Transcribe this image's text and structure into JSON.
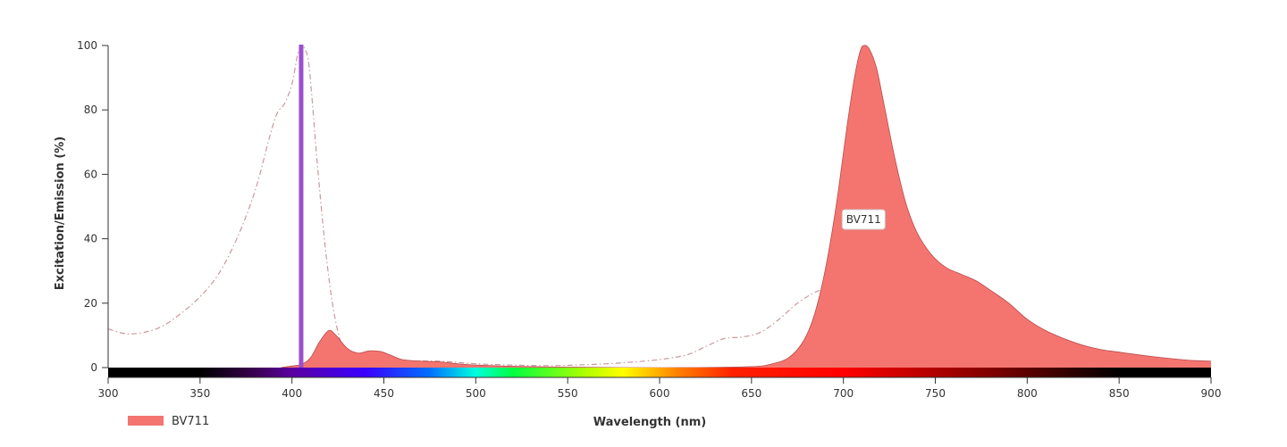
{
  "chart_data": {
    "type": "area",
    "xlabel": "Wavelength (nm)",
    "ylabel": "Excitation/Emission (%)",
    "xlim": [
      300,
      900
    ],
    "ylim": [
      0,
      100
    ],
    "x_ticks": [
      300,
      350,
      400,
      450,
      500,
      550,
      600,
      650,
      700,
      750,
      800,
      850,
      900
    ],
    "y_ticks": [
      0,
      20,
      40,
      60,
      80,
      100
    ],
    "grid": false,
    "legend_position": "bottom-left",
    "laser_line": {
      "wavelength": 405,
      "color": "#9b4fd0"
    },
    "series": [
      {
        "name": "BV711",
        "kind": "excitation",
        "style": "dashed",
        "color": "#c9999c",
        "points": [
          [
            300,
            12
          ],
          [
            310,
            10.5
          ],
          [
            320,
            11
          ],
          [
            330,
            13
          ],
          [
            340,
            17
          ],
          [
            350,
            22
          ],
          [
            360,
            29
          ],
          [
            370,
            40
          ],
          [
            380,
            55
          ],
          [
            388,
            72
          ],
          [
            392,
            79
          ],
          [
            396,
            82
          ],
          [
            400,
            88
          ],
          [
            403,
            97
          ],
          [
            405,
            100
          ],
          [
            407,
            99
          ],
          [
            409,
            95
          ],
          [
            411,
            83
          ],
          [
            414,
            62
          ],
          [
            418,
            38
          ],
          [
            422,
            20
          ],
          [
            426,
            9
          ],
          [
            430,
            4
          ],
          [
            440,
            2
          ],
          [
            460,
            2
          ],
          [
            480,
            2
          ],
          [
            500,
            1.2
          ],
          [
            520,
            0.8
          ],
          [
            540,
            0.6
          ],
          [
            560,
            0.9
          ],
          [
            580,
            1.5
          ],
          [
            600,
            2.5
          ],
          [
            615,
            4
          ],
          [
            625,
            6.5
          ],
          [
            635,
            9
          ],
          [
            645,
            9.5
          ],
          [
            655,
            11
          ],
          [
            665,
            15
          ],
          [
            675,
            20
          ],
          [
            685,
            23.5
          ],
          [
            690,
            24
          ],
          [
            695,
            23
          ],
          [
            700,
            20
          ],
          [
            706,
            14
          ],
          [
            712,
            8.5
          ],
          [
            720,
            4
          ],
          [
            730,
            1.5
          ],
          [
            740,
            0.5
          ],
          [
            750,
            0
          ]
        ]
      },
      {
        "name": "BV711",
        "kind": "emission",
        "style": "filled",
        "color": "#f47570",
        "points": [
          [
            394,
            0
          ],
          [
            400,
            0.5
          ],
          [
            405,
            1
          ],
          [
            410,
            3
          ],
          [
            415,
            8
          ],
          [
            420,
            11.5
          ],
          [
            424,
            10
          ],
          [
            430,
            6
          ],
          [
            436,
            4.5
          ],
          [
            442,
            5.2
          ],
          [
            448,
            5
          ],
          [
            454,
            3.8
          ],
          [
            460,
            2.5
          ],
          [
            470,
            2
          ],
          [
            480,
            1.8
          ],
          [
            490,
            1.2
          ],
          [
            500,
            0.8
          ],
          [
            520,
            0.4
          ],
          [
            540,
            0.2
          ],
          [
            560,
            0.1
          ],
          [
            580,
            0
          ],
          [
            620,
            0
          ],
          [
            650,
            0.3
          ],
          [
            660,
            1
          ],
          [
            670,
            3
          ],
          [
            678,
            8
          ],
          [
            684,
            16
          ],
          [
            690,
            30
          ],
          [
            696,
            50
          ],
          [
            702,
            75
          ],
          [
            706,
            90
          ],
          [
            709,
            98
          ],
          [
            711,
            100
          ],
          [
            714,
            99
          ],
          [
            718,
            93
          ],
          [
            722,
            82
          ],
          [
            728,
            65
          ],
          [
            734,
            51
          ],
          [
            740,
            42
          ],
          [
            748,
            35
          ],
          [
            756,
            31
          ],
          [
            764,
            29
          ],
          [
            772,
            27
          ],
          [
            780,
            24
          ],
          [
            790,
            20
          ],
          [
            800,
            15
          ],
          [
            810,
            11.5
          ],
          [
            820,
            9
          ],
          [
            830,
            7
          ],
          [
            840,
            5.6
          ],
          [
            850,
            4.8
          ],
          [
            860,
            4
          ],
          [
            870,
            3.3
          ],
          [
            880,
            2.7
          ],
          [
            890,
            2.2
          ],
          [
            900,
            2
          ]
        ]
      }
    ],
    "legend": [
      {
        "name": "BV711",
        "color": "#f47570"
      }
    ],
    "annotations": [
      {
        "text": "BV711",
        "x": 711,
        "y": 46
      }
    ],
    "spectrum_bar": [
      {
        "nm": 300,
        "color": "#000000"
      },
      {
        "nm": 350,
        "color": "#000000"
      },
      {
        "nm": 380,
        "color": "#3a0050"
      },
      {
        "nm": 400,
        "color": "#5a00a0"
      },
      {
        "nm": 440,
        "color": "#3a00ff"
      },
      {
        "nm": 475,
        "color": "#0070ff"
      },
      {
        "nm": 500,
        "color": "#00ffdd"
      },
      {
        "nm": 520,
        "color": "#00ff40"
      },
      {
        "nm": 560,
        "color": "#b0ff00"
      },
      {
        "nm": 580,
        "color": "#ffff00"
      },
      {
        "nm": 610,
        "color": "#ff8000"
      },
      {
        "nm": 640,
        "color": "#ff2000"
      },
      {
        "nm": 700,
        "color": "#ff0000"
      },
      {
        "nm": 780,
        "color": "#800000"
      },
      {
        "nm": 850,
        "color": "#000000"
      },
      {
        "nm": 900,
        "color": "#000000"
      }
    ]
  }
}
